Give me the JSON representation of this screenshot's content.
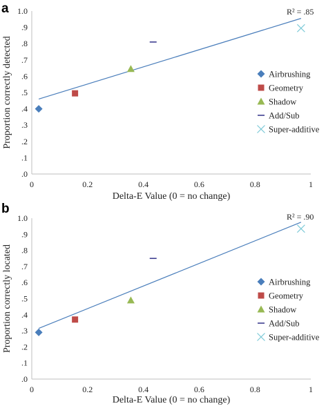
{
  "chart_data": [
    {
      "type": "scatter",
      "panel_label": "a",
      "xlabel": "Delta-E Value  (0 = no change)",
      "ylabel": "Proportion correctly detected",
      "xlim": [
        0,
        1
      ],
      "ylim": [
        0,
        1
      ],
      "x_ticks": [
        "0",
        "0.2",
        "0.4",
        "0.6",
        "0.8",
        "1"
      ],
      "y_ticks": [
        ".0",
        ".1",
        ".2",
        ".3",
        ".4",
        ".5",
        ".6",
        ".7",
        ".8",
        ".9",
        "1.0"
      ],
      "grid": false,
      "legend_position": "right",
      "series": [
        {
          "name": "Airbrushing",
          "marker": "diamond",
          "color": "#4a7ebb",
          "x": 0.025,
          "y": 0.4
        },
        {
          "name": "Geometry",
          "marker": "square",
          "color": "#be4b48",
          "x": 0.155,
          "y": 0.495
        },
        {
          "name": "Shadow",
          "marker": "triangle",
          "color": "#98b954",
          "x": 0.355,
          "y": 0.645
        },
        {
          "name": "Add/Sub",
          "marker": "dash",
          "color": "#3d3d8f",
          "x": 0.435,
          "y": 0.81
        },
        {
          "name": "Super-additive",
          "marker": "x",
          "color": "#7ecad8",
          "x": 0.965,
          "y": 0.895
        }
      ],
      "trendline": {
        "x": [
          0.025,
          0.965
        ],
        "y": [
          0.46,
          0.955
        ],
        "color": "#4a7ebb"
      },
      "annotation": "R² = .85"
    },
    {
      "type": "scatter",
      "panel_label": "b",
      "xlabel": "Delta-E Value  (0 = no change)",
      "ylabel": "Proportion correctly located",
      "xlim": [
        0,
        1
      ],
      "ylim": [
        0,
        1
      ],
      "x_ticks": [
        "0",
        "0.2",
        "0.4",
        "0.6",
        "0.8",
        "1"
      ],
      "y_ticks": [
        ".0",
        ".1",
        ".2",
        ".3",
        ".4",
        ".5",
        ".6",
        ".7",
        ".8",
        ".9",
        "1.0"
      ],
      "grid": false,
      "legend_position": "right",
      "series": [
        {
          "name": "Airbrushing",
          "marker": "diamond",
          "color": "#4a7ebb",
          "x": 0.025,
          "y": 0.29
        },
        {
          "name": "Geometry",
          "marker": "square",
          "color": "#be4b48",
          "x": 0.155,
          "y": 0.37
        },
        {
          "name": "Shadow",
          "marker": "triangle",
          "color": "#98b954",
          "x": 0.355,
          "y": 0.49
        },
        {
          "name": "Add/Sub",
          "marker": "dash",
          "color": "#3d3d8f",
          "x": 0.435,
          "y": 0.75
        },
        {
          "name": "Super-additive",
          "marker": "x",
          "color": "#7ecad8",
          "x": 0.965,
          "y": 0.935
        }
      ],
      "trendline": {
        "x": [
          0.025,
          0.965
        ],
        "y": [
          0.315,
          0.975
        ],
        "color": "#4a7ebb"
      },
      "annotation": "R² = .90"
    }
  ]
}
